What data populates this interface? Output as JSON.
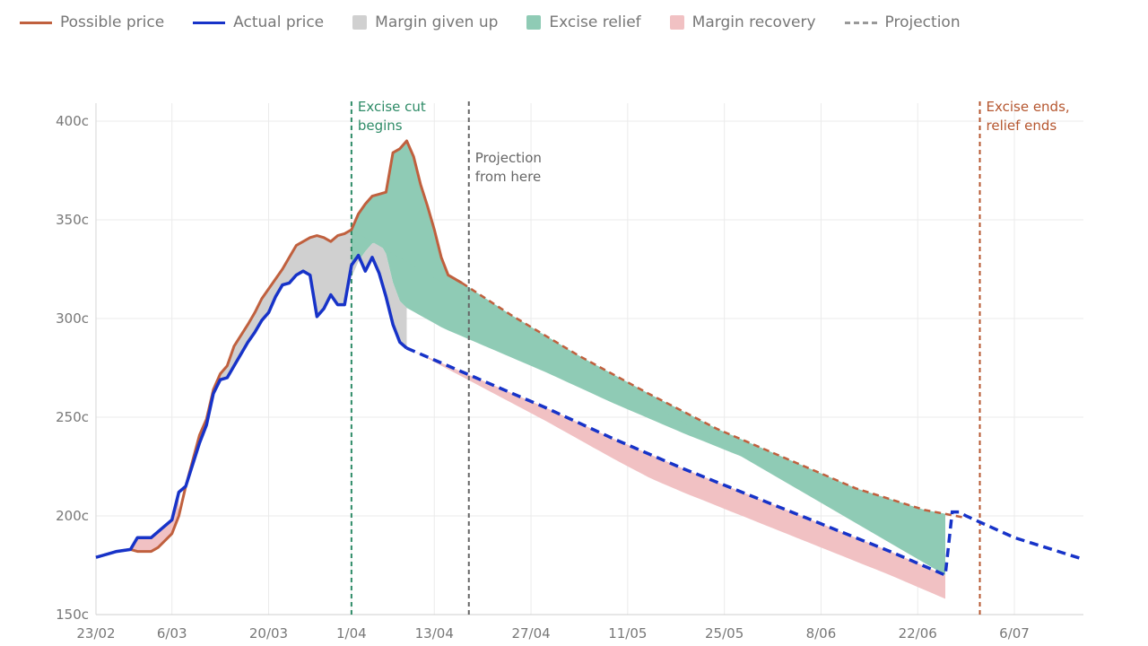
{
  "legend": [
    {
      "label": "Possible price",
      "kind": "line",
      "color": "#c0603e",
      "icon": "orange-line-swatch-icon"
    },
    {
      "label": "Actual price",
      "kind": "line",
      "color": "#1733c8",
      "icon": "blue-line-swatch-icon"
    },
    {
      "label": "Margin given up",
      "kind": "box",
      "color": "#d0d0d0",
      "icon": "grey-box-swatch-icon"
    },
    {
      "label": "Excise relief",
      "kind": "box",
      "color": "#8fcbb5",
      "icon": "green-box-swatch-icon"
    },
    {
      "label": "Margin recovery",
      "kind": "box",
      "color": "#f1c1c3",
      "icon": "pink-box-swatch-icon"
    },
    {
      "label": "Projection",
      "kind": "dash",
      "color": "#999999",
      "icon": "dashed-line-swatch-icon"
    }
  ],
  "chart_data": {
    "type": "line",
    "x_ticks": [
      {
        "day": 0,
        "label": "23/02"
      },
      {
        "day": 11,
        "label": "6/03"
      },
      {
        "day": 25,
        "label": "20/03"
      },
      {
        "day": 37,
        "label": "1/04"
      },
      {
        "day": 49,
        "label": "13/04"
      },
      {
        "day": 63,
        "label": "27/04"
      },
      {
        "day": 77,
        "label": "11/05"
      },
      {
        "day": 91,
        "label": "25/05"
      },
      {
        "day": 105,
        "label": "8/06"
      },
      {
        "day": 119,
        "label": "22/06"
      },
      {
        "day": 133,
        "label": "6/07"
      }
    ],
    "x_range": [
      0,
      143
    ],
    "ylim": [
      150,
      400
    ],
    "y_ticks": [
      {
        "value": 150,
        "label": "150c"
      },
      {
        "value": 200,
        "label": "200c"
      },
      {
        "value": 250,
        "label": "250c"
      },
      {
        "value": 300,
        "label": "300c"
      },
      {
        "value": 350,
        "label": "350c"
      },
      {
        "value": 400,
        "label": "400c"
      }
    ],
    "grid": true,
    "legend_position": "top",
    "series": [
      {
        "name": "Possible price",
        "color": "#c0603e",
        "points": [
          [
            0,
            179
          ],
          [
            1,
            180
          ],
          [
            3,
            182
          ],
          [
            5,
            183
          ],
          [
            6,
            182
          ],
          [
            8,
            182
          ],
          [
            9,
            184
          ],
          [
            11,
            191
          ],
          [
            12,
            200
          ],
          [
            13,
            215
          ],
          [
            15,
            241
          ],
          [
            16,
            249
          ],
          [
            17,
            264
          ],
          [
            18,
            272
          ],
          [
            19,
            276
          ],
          [
            20,
            286
          ],
          [
            22,
            297
          ],
          [
            23,
            303
          ],
          [
            24,
            310
          ],
          [
            25,
            315
          ],
          [
            26,
            320
          ],
          [
            27,
            325
          ],
          [
            28,
            331
          ],
          [
            29,
            337
          ],
          [
            30,
            339
          ],
          [
            31,
            341
          ],
          [
            32,
            342
          ],
          [
            33,
            341
          ],
          [
            34,
            339
          ],
          [
            35,
            342
          ],
          [
            36,
            343
          ],
          [
            37,
            345
          ],
          [
            38,
            353
          ],
          [
            39,
            358
          ],
          [
            40,
            362
          ],
          [
            41,
            363
          ],
          [
            42,
            364
          ],
          [
            43,
            384
          ],
          [
            44,
            386
          ],
          [
            45,
            390
          ],
          [
            46,
            382
          ],
          [
            47,
            368
          ],
          [
            48,
            357
          ],
          [
            49,
            345
          ],
          [
            50,
            331
          ],
          [
            51,
            322
          ],
          [
            53,
            318
          ]
        ],
        "projection": [
          [
            53,
            318
          ],
          [
            60,
            302
          ],
          [
            70,
            281
          ],
          [
            80,
            262
          ],
          [
            90,
            244
          ],
          [
            100,
            229
          ],
          [
            110,
            214
          ],
          [
            120,
            203
          ],
          [
            126,
            199
          ]
        ]
      },
      {
        "name": "Actual price",
        "color": "#1733c8",
        "points": [
          [
            0,
            179
          ],
          [
            1,
            180
          ],
          [
            3,
            182
          ],
          [
            5,
            183
          ],
          [
            6,
            189
          ],
          [
            8,
            189
          ],
          [
            9,
            192
          ],
          [
            11,
            198
          ],
          [
            12,
            212
          ],
          [
            13,
            215
          ],
          [
            15,
            237
          ],
          [
            16,
            246
          ],
          [
            17,
            262
          ],
          [
            18,
            269
          ],
          [
            19,
            270
          ],
          [
            20,
            276
          ],
          [
            22,
            288
          ],
          [
            23,
            293
          ],
          [
            24,
            299
          ],
          [
            25,
            303
          ],
          [
            26,
            311
          ],
          [
            27,
            317
          ],
          [
            28,
            318
          ],
          [
            29,
            322
          ],
          [
            30,
            324
          ],
          [
            31,
            322
          ],
          [
            32,
            301
          ],
          [
            33,
            305
          ],
          [
            34,
            312
          ],
          [
            35,
            307
          ],
          [
            36,
            307
          ],
          [
            37,
            327
          ],
          [
            38,
            332
          ],
          [
            39,
            324
          ],
          [
            40,
            331
          ],
          [
            41,
            323
          ],
          [
            42,
            311
          ],
          [
            43,
            297
          ],
          [
            44,
            288
          ],
          [
            45,
            285
          ]
        ],
        "projection": [
          [
            45,
            285
          ],
          [
            55,
            270
          ],
          [
            65,
            255
          ],
          [
            75,
            239
          ],
          [
            85,
            224
          ],
          [
            95,
            210
          ],
          [
            105,
            196
          ],
          [
            115,
            182
          ],
          [
            123,
            170
          ],
          [
            124,
            202
          ],
          [
            125,
            202
          ],
          [
            126,
            200
          ],
          [
            133,
            189
          ],
          [
            143,
            178
          ]
        ]
      }
    ],
    "bands": [
      {
        "name": "Margin given up",
        "color": "#d0d0d0"
      },
      {
        "name": "Excise relief",
        "color": "#8fcbb5"
      },
      {
        "name": "Margin recovery",
        "color": "#f1c1c3"
      }
    ],
    "annotations": [
      {
        "day": 37,
        "text": [
          "Excise cut",
          "begins"
        ],
        "color": "#2e8b67"
      },
      {
        "day": 54,
        "text": [
          "Projection",
          "from here"
        ],
        "color": "#666666"
      },
      {
        "day": 128,
        "text": [
          "Excise ends,",
          "relief ends"
        ],
        "color": "#b5562f"
      }
    ]
  }
}
